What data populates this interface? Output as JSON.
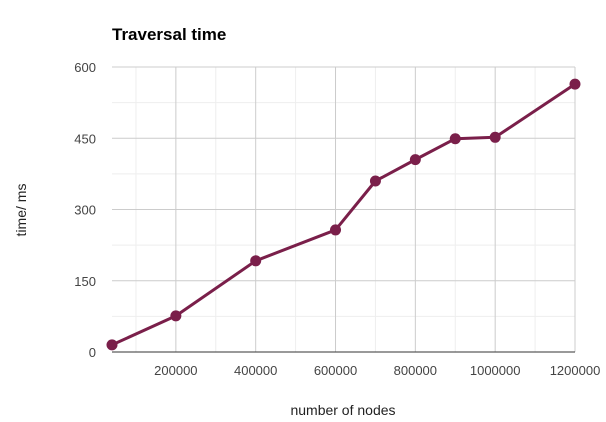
{
  "chart_data": {
    "type": "line",
    "title": "Traversal time",
    "xlabel": "number of nodes",
    "ylabel": "time/ ms",
    "xlim": [
      40000,
      1200000
    ],
    "ylim": [
      0,
      600
    ],
    "x_ticks": [
      200000,
      400000,
      600000,
      800000,
      1000000,
      1200000
    ],
    "y_ticks": [
      0,
      150,
      300,
      450,
      600
    ],
    "x_tick_labels": [
      "200000",
      "400000",
      "600000",
      "800000",
      "1000000",
      "1200000"
    ],
    "y_tick_labels": [
      "0",
      "150",
      "300",
      "450",
      "600"
    ],
    "grid": true,
    "legend": "none",
    "series": [
      {
        "color": "#7a1f4a",
        "points": [
          {
            "x": 40000,
            "y": 15
          },
          {
            "x": 200000,
            "y": 76
          },
          {
            "x": 400000,
            "y": 192
          },
          {
            "x": 600000,
            "y": 257
          },
          {
            "x": 700000,
            "y": 360
          },
          {
            "x": 800000,
            "y": 405
          },
          {
            "x": 900000,
            "y": 449
          },
          {
            "x": 1000000,
            "y": 452
          },
          {
            "x": 1200000,
            "y": 564
          }
        ]
      }
    ]
  }
}
